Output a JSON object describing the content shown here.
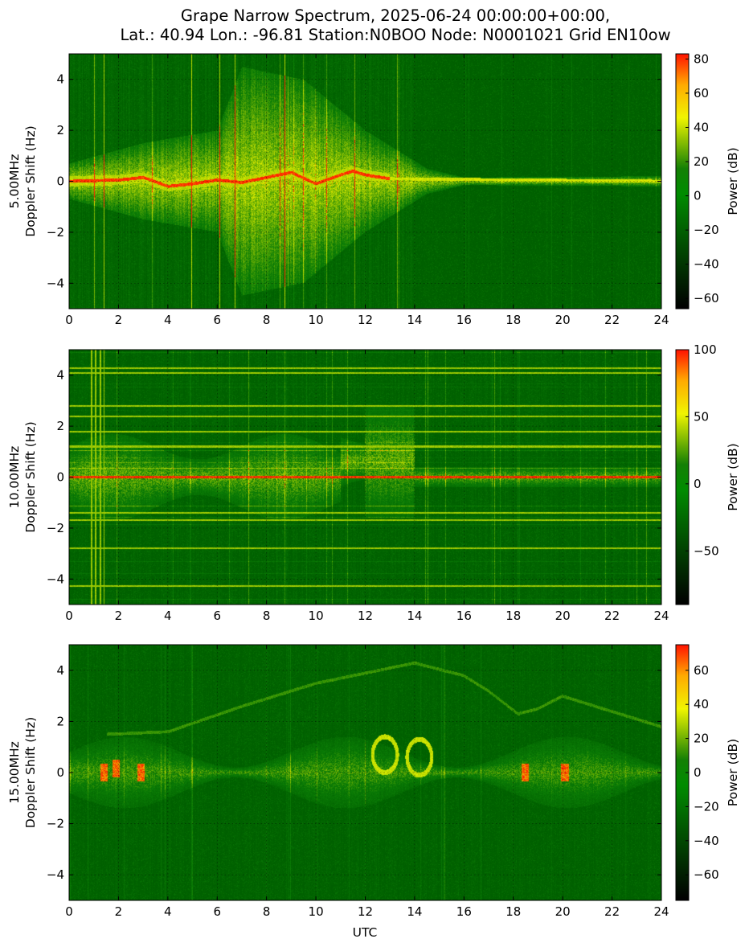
{
  "figure": {
    "title_line1": "Grape Narrow Spectrum, 2025-06-24 00:00:00+00:00,",
    "title_line2": "Lat.: 40.94 Lon.: -96.81 Station:N0BOO Node: N0001021 Grid EN10ow",
    "xlabel": "UTC"
  },
  "colors": {
    "background_green": "#0b7d06",
    "signal_yellow": "#e5f000",
    "signal_red": "#ff2000",
    "colormap": [
      "#000000",
      "#00a000",
      "#ffff00",
      "#ff0000"
    ]
  },
  "chart_data": [
    {
      "type": "heatmap",
      "frequency": "5.00MHz",
      "ylabel": "5.00MHz\nDoppler Shift (Hz)",
      "xlabel": "",
      "xlim": [
        0,
        24
      ],
      "ylim": [
        -5,
        5
      ],
      "xticks": [
        0,
        2,
        4,
        6,
        8,
        10,
        12,
        14,
        16,
        18,
        20,
        22,
        24
      ],
      "yticks": [
        -4,
        -2,
        0,
        2,
        4
      ],
      "ytick_labels": [
        "−4",
        "−2",
        "0",
        "2",
        "4"
      ],
      "grid": true,
      "colorbar": {
        "label": "Power (dB)",
        "range": [
          -66,
          83
        ],
        "ticks": [
          80,
          60,
          40,
          20,
          0,
          -20,
          -40,
          -60
        ],
        "tick_labels": [
          "80",
          "60",
          "40",
          "20",
          "0",
          "−20",
          "−40",
          "−60"
        ]
      },
      "features": {
        "carrier": [
          [
            0,
            0
          ],
          [
            2,
            0.05
          ],
          [
            3,
            0.15
          ],
          [
            4,
            -0.2
          ],
          [
            5,
            -0.1
          ],
          [
            6,
            0.05
          ],
          [
            7,
            -0.05
          ],
          [
            8,
            0.15
          ],
          [
            9,
            0.35
          ],
          [
            10,
            -0.1
          ],
          [
            11,
            0.25
          ],
          [
            11.5,
            0.4
          ],
          [
            12,
            0.25
          ],
          [
            13,
            0.1
          ],
          [
            24,
            0
          ]
        ],
        "spread_envelope": [
          [
            0,
            0.7
          ],
          [
            3,
            1.5
          ],
          [
            6,
            2
          ],
          [
            7,
            4.5
          ],
          [
            9.5,
            4
          ],
          [
            12,
            2
          ],
          [
            14.5,
            0.5
          ],
          [
            16,
            0.15
          ],
          [
            24,
            0.2
          ]
        ]
      }
    },
    {
      "type": "heatmap",
      "frequency": "10.00MHz",
      "ylabel": "10.00MHz\nDoppler Shift (Hz)",
      "xlabel": "",
      "xlim": [
        0,
        24
      ],
      "ylim": [
        -5,
        5
      ],
      "xticks": [
        0,
        2,
        4,
        6,
        8,
        10,
        12,
        14,
        16,
        18,
        20,
        22,
        24
      ],
      "yticks": [
        -4,
        -2,
        0,
        2,
        4
      ],
      "ytick_labels": [
        "−4",
        "−2",
        "0",
        "2",
        "4"
      ],
      "grid": true,
      "colorbar": {
        "label": "Power (dB)",
        "range": [
          -90,
          100
        ],
        "ticks": [
          100,
          50,
          0,
          -50
        ],
        "tick_labels": [
          "100",
          "50",
          "0",
          "−50"
        ]
      },
      "features": {
        "carrier": [
          [
            0,
            0
          ],
          [
            24,
            0
          ]
        ],
        "horizontal_lines": [
          4.3,
          4.1,
          2.8,
          2.4,
          1.8,
          1.2,
          -1.4,
          -1.7,
          -2.8,
          -4.3
        ],
        "vertical_lines": [
          0.9,
          1.05,
          1.25,
          1.4
        ]
      }
    },
    {
      "type": "heatmap",
      "frequency": "15.00MHz",
      "ylabel": "15.00MHz\nDoppler Shift (Hz)",
      "xlabel": "UTC",
      "xlim": [
        0,
        24
      ],
      "ylim": [
        -5,
        5
      ],
      "xticks": [
        0,
        2,
        4,
        6,
        8,
        10,
        12,
        14,
        16,
        18,
        20,
        22,
        24
      ],
      "yticks": [
        -4,
        -2,
        0,
        2,
        4
      ],
      "ytick_labels": [
        "−4",
        "−2",
        "0",
        "2",
        "4"
      ],
      "grid": true,
      "colorbar": {
        "label": "Power (dB)",
        "range": [
          -75,
          75
        ],
        "ticks": [
          60,
          40,
          20,
          0,
          -20,
          -40,
          -60
        ],
        "tick_labels": [
          "60",
          "40",
          "20",
          "0",
          "−20",
          "−40",
          "−60"
        ]
      },
      "features": {
        "hot_spots": [
          [
            1.4,
            0
          ],
          [
            1.9,
            0.15
          ],
          [
            2.9,
            0
          ],
          [
            18.5,
            0
          ],
          [
            20.1,
            0
          ]
        ],
        "faint_trace": [
          [
            1.5,
            1.5
          ],
          [
            4,
            1.6
          ],
          [
            7,
            2.6
          ],
          [
            10,
            3.5
          ],
          [
            12,
            3.9
          ],
          [
            14,
            4.3
          ],
          [
            16,
            3.8
          ],
          [
            17,
            3.2
          ],
          [
            18.2,
            2.3
          ],
          [
            19,
            2.5
          ],
          [
            20,
            3
          ],
          [
            24,
            1.8
          ]
        ],
        "arc_centers": [
          [
            12.8,
            0.7
          ],
          [
            14.2,
            0.6
          ]
        ]
      }
    }
  ]
}
